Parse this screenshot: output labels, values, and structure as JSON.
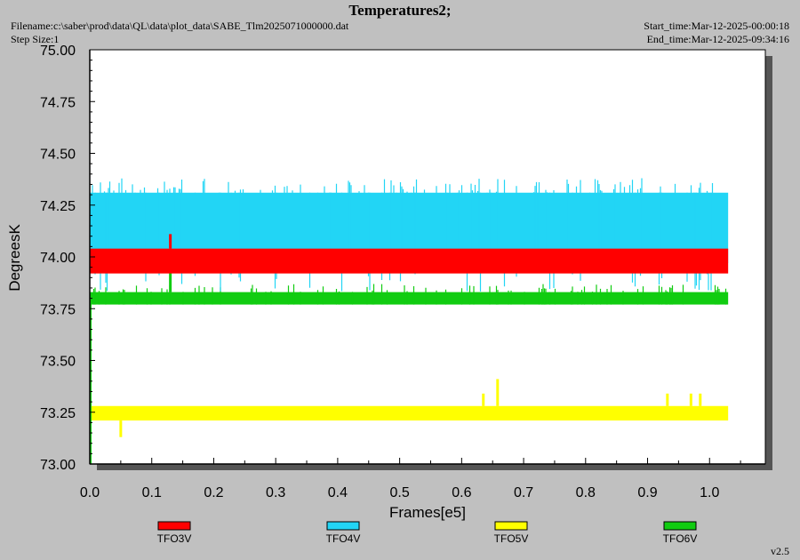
{
  "header": {
    "title": "Temperatures2;",
    "filename": "Filename:c:\\saber\\prod\\data\\QL\\data\\plot_data\\SABE_Tlm2025071000000.dat",
    "step_size": "Step Size:1",
    "start_time": "Start_time:Mar-12-2025-00:00:18",
    "end_time": "End_time:Mar-12-2025-09:34:16",
    "version": "v2.5"
  },
  "chart_data": {
    "type": "line",
    "title": "Temperatures2;",
    "xlabel": "Frames[e5]",
    "ylabel": "DegreesK",
    "xlim": [
      0.0,
      1.09
    ],
    "ylim": [
      73.0,
      75.0
    ],
    "x_ticks": [
      "0.0",
      "0.1",
      "0.2",
      "0.3",
      "0.4",
      "0.5",
      "0.6",
      "0.7",
      "0.8",
      "0.9",
      "1.0"
    ],
    "y_ticks": [
      "73.00",
      "73.25",
      "73.50",
      "73.75",
      "74.00",
      "74.25",
      "74.50",
      "74.75",
      "75.00"
    ],
    "grid": false,
    "legend_position": "bottom",
    "series": [
      {
        "name": "TFO3V",
        "color": "#ff0000",
        "x_range": [
          0.0,
          1.03
        ],
        "level_low": 73.92,
        "level_high": 74.04,
        "spikes": [
          {
            "x": 0.13,
            "y": 74.11
          }
        ]
      },
      {
        "name": "TFO4V",
        "color": "#22d5f5",
        "x_range": [
          0.0,
          1.03
        ],
        "level_low": 73.97,
        "level_high": 74.31,
        "spike_high": 74.38,
        "spike_low": 73.83
      },
      {
        "name": "TFO5V",
        "color": "#ffff00",
        "x_range": [
          0.0,
          1.03
        ],
        "level_low": 73.21,
        "level_high": 73.28,
        "spikes": [
          {
            "x": 0.05,
            "y": 73.13
          },
          {
            "x": 0.635,
            "y": 73.34
          },
          {
            "x": 0.658,
            "y": 73.41
          },
          {
            "x": 0.932,
            "y": 73.34
          },
          {
            "x": 0.97,
            "y": 73.34
          },
          {
            "x": 0.985,
            "y": 73.34
          }
        ]
      },
      {
        "name": "TFO6V",
        "color": "#11cc11",
        "x_range": [
          0.0,
          1.03
        ],
        "level_low": 73.77,
        "level_high": 73.83,
        "spike_high": 73.87,
        "spikes": [
          {
            "x": 0.13,
            "y": 74.11
          }
        ]
      }
    ]
  }
}
